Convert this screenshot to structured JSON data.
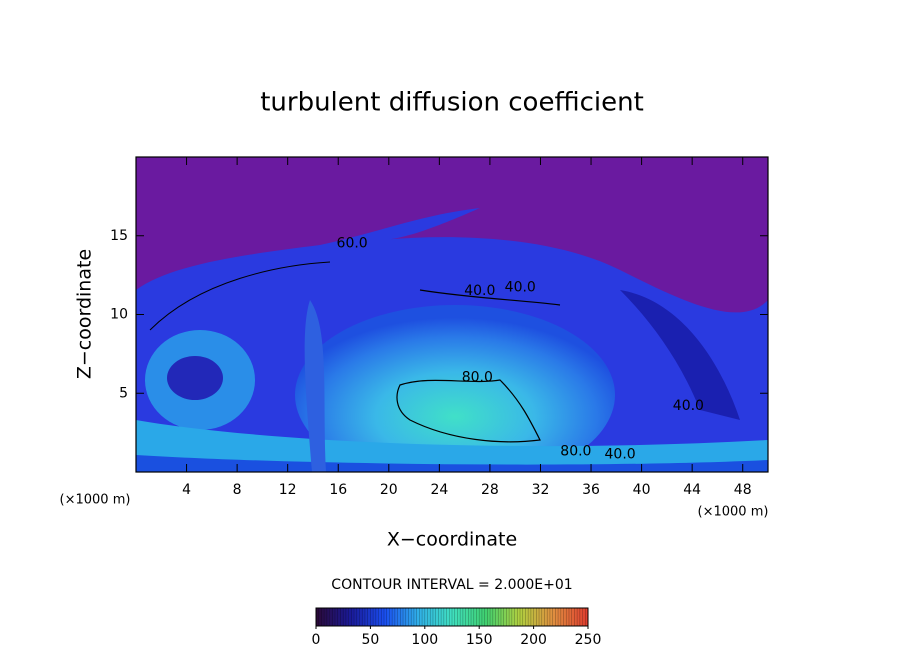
{
  "chart_data": {
    "type": "contour",
    "title": "turbulent diffusion coefficient",
    "x_label": "X−coordinate",
    "y_label": "Z−coordinate",
    "x_unit": "(×1000 m)",
    "y_unit": "(×1000 m)",
    "xlim": [
      0,
      50
    ],
    "xticks": [
      4,
      8,
      12,
      16,
      20,
      24,
      28,
      32,
      36,
      40,
      44,
      48
    ],
    "ylim": [
      0,
      20
    ],
    "yticks": [
      5,
      10,
      15
    ],
    "contour_interval": "CONTOUR INTERVAL = 2.000E+01",
    "contour_labels": [
      {
        "x": 17.1,
        "y": 14.5,
        "value": 60,
        "label": "60.0"
      },
      {
        "x": 27.2,
        "y": 11.5,
        "value": 40,
        "label": "40.0"
      },
      {
        "x": 30.4,
        "y": 11.7,
        "value": 40,
        "label": "40.0"
      },
      {
        "x": 27.0,
        "y": 6.0,
        "value": 80,
        "label": "80.0"
      },
      {
        "x": 34.8,
        "y": 1.3,
        "value": 80,
        "label": "80.0"
      },
      {
        "x": 38.3,
        "y": 1.1,
        "value": 40,
        "label": "40.0"
      },
      {
        "x": 43.7,
        "y": 4.2,
        "value": 40,
        "label": "40.0"
      }
    ],
    "colorbar": {
      "lim": [
        0,
        250
      ],
      "ticks": [
        0,
        50,
        100,
        150,
        200,
        250
      ],
      "colors": [
        "#2a0a3a",
        "#1a1a9a",
        "#1a4ef0",
        "#30b0e8",
        "#40e0c0",
        "#40d070",
        "#b0d040",
        "#e09040",
        "#e04030"
      ]
    }
  }
}
